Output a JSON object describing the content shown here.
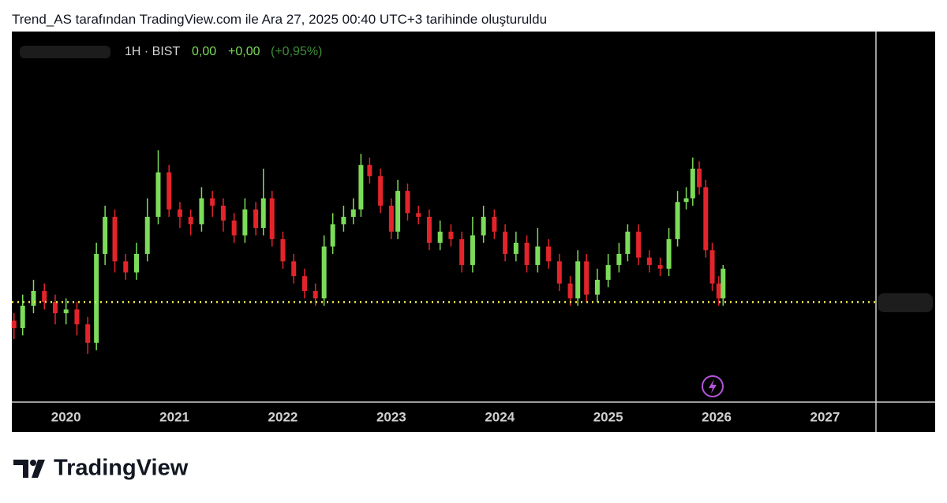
{
  "header": {
    "title": "Trend_AS tarafından TradingView.com ile Ara 27, 2025 00:40 UTC+3 tarihinde oluşturuldu"
  },
  "chart_data": {
    "type": "candlestick",
    "legend": {
      "interval": "1H · BIST",
      "price": "0,00",
      "change": "+0,00",
      "change_percent": "(+0,95%)"
    },
    "up_color": "#7cdc5a",
    "down_color": "#e3242b",
    "x": [
      2019.52,
      2019.6,
      2019.7,
      2019.8,
      2019.9,
      2020.0,
      2020.1,
      2020.2,
      2020.28,
      2020.36,
      2020.45,
      2020.55,
      2020.65,
      2020.75,
      2020.85,
      2020.95,
      2021.05,
      2021.15,
      2021.25,
      2021.35,
      2021.45,
      2021.55,
      2021.65,
      2021.75,
      2021.82,
      2021.9,
      2022.0,
      2022.1,
      2022.2,
      2022.3,
      2022.38,
      2022.46,
      2022.56,
      2022.65,
      2022.72,
      2022.8,
      2022.9,
      2023.0,
      2023.06,
      2023.15,
      2023.25,
      2023.35,
      2023.45,
      2023.55,
      2023.65,
      2023.75,
      2023.85,
      2023.95,
      2024.05,
      2024.15,
      2024.25,
      2024.35,
      2024.45,
      2024.55,
      2024.65,
      2024.72,
      2024.8,
      2024.9,
      2025.0,
      2025.1,
      2025.18,
      2025.28,
      2025.38,
      2025.48,
      2025.56,
      2025.64,
      2025.72,
      2025.78,
      2025.84,
      2025.9,
      2025.96,
      2026.02,
      2026.06
    ],
    "open": [
      22,
      20,
      26,
      30,
      27,
      24,
      25,
      21,
      16,
      40,
      50,
      38,
      35,
      40,
      50,
      62,
      52,
      50,
      48,
      55,
      53,
      49,
      45,
      52,
      47,
      55,
      44,
      38,
      34,
      30,
      28,
      42,
      48,
      50,
      52,
      64,
      61,
      53,
      46,
      57,
      51,
      50,
      43,
      46,
      44,
      37,
      45,
      50,
      46,
      40,
      43,
      37,
      42,
      38,
      32,
      28,
      38,
      29,
      33,
      37,
      40,
      46,
      39,
      37,
      36,
      44,
      54,
      55,
      63,
      58,
      41,
      32,
      28
    ],
    "high": [
      24,
      29,
      33,
      32,
      29,
      28,
      27,
      23,
      43,
      53,
      52,
      40,
      43,
      55,
      68,
      64,
      54,
      52,
      58,
      57,
      55,
      51,
      55,
      54,
      63,
      57,
      46,
      40,
      36,
      32,
      45,
      51,
      53,
      55,
      67,
      66,
      63,
      55,
      60,
      59,
      53,
      52,
      49,
      48,
      46,
      50,
      53,
      52,
      48,
      46,
      45,
      47,
      44,
      40,
      34,
      41,
      40,
      36,
      40,
      43,
      48,
      48,
      41,
      39,
      47,
      57,
      58,
      66,
      65,
      60,
      43,
      34,
      37
    ],
    "low": [
      17,
      18,
      24,
      25,
      21,
      21,
      18,
      13,
      14,
      37,
      35,
      33,
      33,
      38,
      48,
      50,
      47,
      45,
      46,
      50,
      46,
      43,
      43,
      45,
      45,
      42,
      36,
      32,
      28,
      26,
      26,
      40,
      46,
      48,
      50,
      59,
      51,
      44,
      44,
      49,
      48,
      41,
      41,
      42,
      35,
      35,
      43,
      44,
      38,
      38,
      35,
      35,
      36,
      30,
      26,
      26,
      27,
      27,
      31,
      35,
      38,
      37,
      35,
      34,
      34,
      42,
      52,
      53,
      56,
      39,
      30,
      26,
      26
    ],
    "close": [
      20,
      26,
      30,
      27,
      24,
      25,
      21,
      16,
      40,
      50,
      38,
      35,
      40,
      50,
      62,
      52,
      50,
      48,
      55,
      53,
      49,
      45,
      52,
      47,
      55,
      44,
      38,
      34,
      30,
      28,
      42,
      48,
      50,
      52,
      64,
      61,
      53,
      46,
      57,
      51,
      50,
      43,
      46,
      44,
      37,
      45,
      50,
      46,
      40,
      43,
      37,
      42,
      38,
      32,
      28,
      38,
      29,
      33,
      37,
      40,
      46,
      39,
      37,
      36,
      44,
      54,
      55,
      63,
      58,
      41,
      32,
      28,
      36
    ],
    "xlim": [
      2019.5,
      2027.47
    ],
    "xticks": [
      2020,
      2021,
      2022,
      2023,
      2024,
      2025,
      2026,
      2027
    ],
    "ylim": [
      0,
      100
    ],
    "price_line": 27,
    "price_line_color": "#f2e64a"
  },
  "footer": {
    "brand": "TradingView"
  }
}
